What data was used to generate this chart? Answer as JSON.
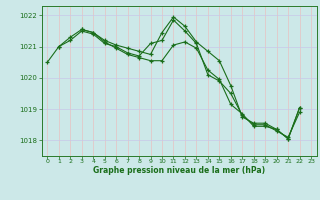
{
  "title": "Graphe pression niveau de la mer (hPa)",
  "bg_color": "#cce8e8",
  "grid_color_h": "#c8c8e8",
  "grid_color_v": "#e8c0c0",
  "line_color": "#1a6e1a",
  "marker": "+",
  "xlim": [
    -0.5,
    23.5
  ],
  "ylim": [
    1017.5,
    1022.3
  ],
  "yticks": [
    1018,
    1019,
    1020,
    1021,
    1022
  ],
  "xticks": [
    0,
    1,
    2,
    3,
    4,
    5,
    6,
    7,
    8,
    9,
    10,
    11,
    12,
    13,
    14,
    15,
    16,
    17,
    18,
    19,
    20,
    21,
    22,
    23
  ],
  "series": [
    [
      1020.5,
      1021.0,
      1021.2,
      1021.5,
      1021.4,
      1021.1,
      1021.0,
      1020.8,
      1020.7,
      1021.1,
      1021.2,
      1021.85,
      1021.5,
      1021.1,
      1020.1,
      1019.9,
      1019.5,
      1018.8,
      1018.5,
      1018.5,
      1018.3,
      1018.1,
      1018.9,
      null
    ],
    [
      null,
      1021.0,
      1021.3,
      1021.55,
      1021.45,
      1021.2,
      1021.05,
      1020.95,
      1020.85,
      1020.75,
      1021.45,
      1021.95,
      1021.65,
      1021.15,
      1020.85,
      1020.55,
      1019.75,
      1018.75,
      1018.55,
      1018.55,
      1018.35,
      1018.05,
      1019.05,
      null
    ],
    [
      null,
      null,
      null,
      1021.55,
      1021.45,
      1021.15,
      1020.95,
      1020.75,
      1020.65,
      1020.55,
      1020.55,
      1021.05,
      1021.15,
      1020.95,
      1020.25,
      1019.95,
      1019.15,
      1018.85,
      1018.45,
      1018.45,
      1018.35,
      1018.05,
      1019.05,
      null
    ]
  ]
}
